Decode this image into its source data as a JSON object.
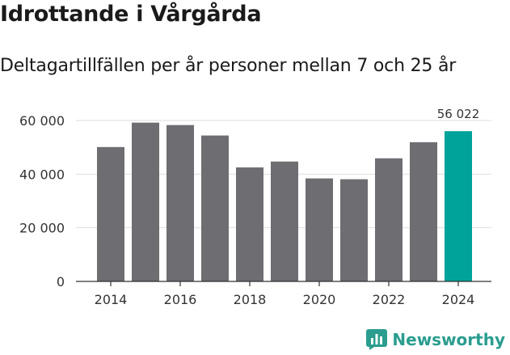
{
  "header": {
    "title": "Idrottande i Vårgårda",
    "subtitle": "Deltagartillfällen per år personer mellan 7 och 25 år"
  },
  "brand": {
    "name": "Newsworthy",
    "icon": "bar-chart-icon"
  },
  "colors": {
    "bar": "#6e6d72",
    "highlight": "#00a399",
    "grid": "#dddddd",
    "axis": "#333333",
    "text": "#333333",
    "brand": "#2a9d8f"
  },
  "chart_data": {
    "type": "bar",
    "title": "Idrottande i Vårgårda",
    "subtitle": "Deltagartillfällen per år personer mellan 7 och 25 år",
    "xlabel": "",
    "ylabel": "",
    "categories": [
      "2014",
      "2015",
      "2016",
      "2017",
      "2018",
      "2019",
      "2020",
      "2021",
      "2022",
      "2023",
      "2024"
    ],
    "values": [
      50100,
      59200,
      58300,
      54400,
      42500,
      44700,
      38400,
      38100,
      45900,
      51900,
      56022
    ],
    "ylim": [
      0,
      60000
    ],
    "yticks": [
      0,
      20000,
      40000,
      60000
    ],
    "ytick_labels": [
      "0",
      "20 000",
      "40 000",
      "60 000"
    ],
    "xtick_labels": [
      "2014",
      "2016",
      "2018",
      "2020",
      "2022",
      "2024"
    ],
    "highlight_index": 10,
    "highlight_label": "56 022",
    "grid": true
  }
}
